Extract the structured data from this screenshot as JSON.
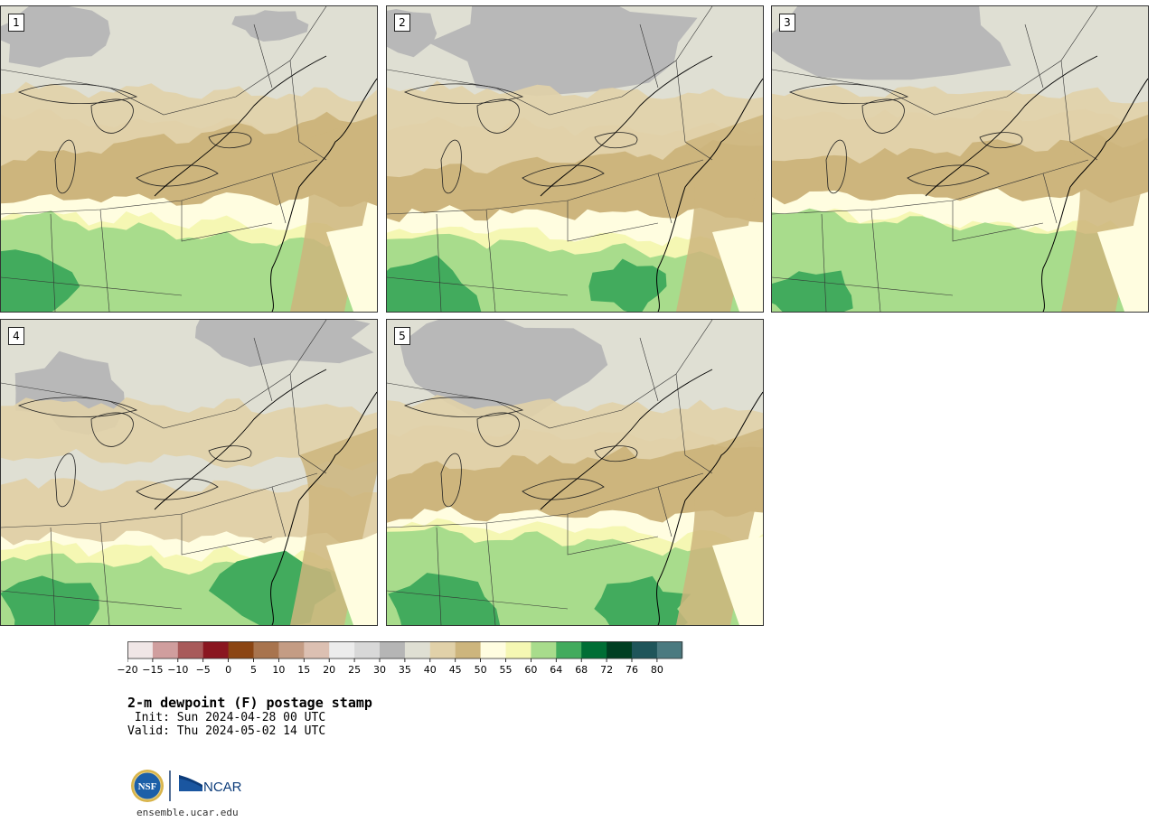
{
  "panels": [
    {
      "label": "1"
    },
    {
      "label": "2"
    },
    {
      "label": "3"
    },
    {
      "label": "4"
    },
    {
      "label": "5"
    }
  ],
  "colorbar": {
    "tick_labels": [
      "−20",
      "−15",
      "−10",
      "−5",
      "0",
      "5",
      "10",
      "15",
      "20",
      "25",
      "30",
      "35",
      "40",
      "45",
      "50",
      "55",
      "60",
      "64",
      "68",
      "72",
      "76",
      "80"
    ],
    "colors": [
      "#f0e6e6",
      "#d09e9e",
      "#a85a5a",
      "#8a1620",
      "#8b4513",
      "#a8744e",
      "#c49c84",
      "#dcc0b2",
      "#ececec",
      "#d8d8d8",
      "#b5b5b5",
      "#dfdfd3",
      "#e1d1a9",
      "#cdb57d",
      "#fffde0",
      "#f5f7b3",
      "#a8dc8c",
      "#42ab5d",
      "#006e35",
      "#003f22",
      "#1f555a",
      "#4b7a80"
    ]
  },
  "title": "2-m dewpoint (F) postage stamp",
  "init": " Init: Sun 2024-04-28 00 UTC",
  "valid": "Valid: Thu 2024-05-02 14 UTC",
  "logo": {
    "nsf_text": "NSF",
    "ncar_text": "NCAR"
  },
  "site": "ensemble.ucar.edu"
}
